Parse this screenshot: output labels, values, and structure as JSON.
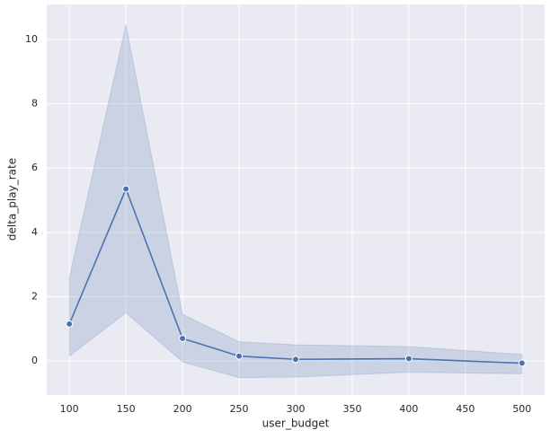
{
  "chart_data": {
    "type": "line",
    "xlabel": "user_budget",
    "ylabel": "delta_play_rate",
    "x": [
      100,
      150,
      200,
      250,
      300,
      400,
      500
    ],
    "values": [
      1.15,
      5.35,
      0.7,
      0.15,
      0.05,
      0.07,
      -0.07
    ],
    "ci_lower": [
      0.15,
      1.5,
      -0.03,
      -0.52,
      -0.5,
      -0.35,
      -0.4
    ],
    "ci_upper": [
      2.6,
      10.45,
      1.45,
      0.6,
      0.5,
      0.45,
      0.2
    ],
    "color": "#4c72b0",
    "xlim": [
      80,
      520
    ],
    "ylim": [
      -1.06,
      11.09
    ],
    "xticks": [
      100,
      150,
      200,
      250,
      300,
      350,
      400,
      450,
      500
    ],
    "yticks": [
      0,
      2,
      4,
      6,
      8,
      10
    ],
    "grid": true
  }
}
